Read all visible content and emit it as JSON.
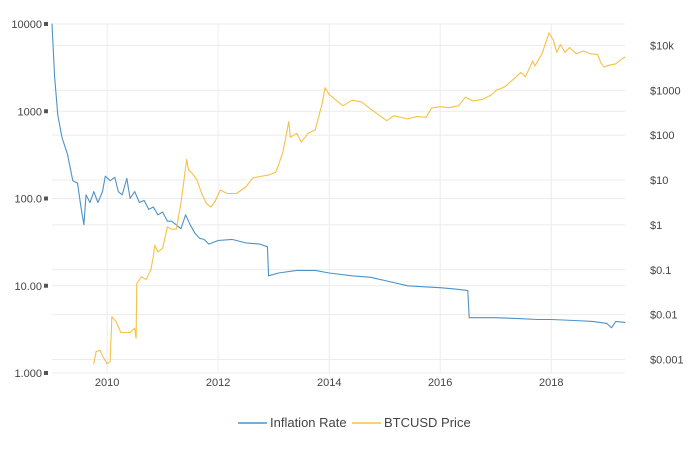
{
  "chart_data": {
    "type": "line",
    "x_axis": {
      "type": "time",
      "range": [
        "2009-01-03",
        "2019-05-01"
      ],
      "tick_labels": [
        "2010",
        "2012",
        "2014",
        "2016",
        "2018"
      ]
    },
    "y_left": {
      "scale": "log",
      "range": [
        1,
        10000
      ],
      "tick_labels": [
        "1.000",
        "10.00",
        "100.0",
        "1000",
        "10000"
      ]
    },
    "y_right": {
      "scale": "log",
      "range": [
        0.0005,
        30000
      ],
      "tick_labels": [
        "$0.001",
        "$0.01",
        "$0.1",
        "$1",
        "$10",
        "$100",
        "$1000",
        "$10k"
      ]
    },
    "grid": true,
    "legend_position": "bottom",
    "colors": {
      "inflation": "#4f92c6",
      "price": "#f5c147",
      "grid": "#ececec",
      "tick_mark": "#555555"
    },
    "series": [
      {
        "name": "Inflation Rate",
        "axis": "left",
        "points": [
          [
            "2009-01-03",
            10000
          ],
          [
            "2009-01-20",
            2500
          ],
          [
            "2009-02-10",
            900
          ],
          [
            "2009-03-10",
            500
          ],
          [
            "2009-04-15",
            320
          ],
          [
            "2009-05-20",
            160
          ],
          [
            "2009-06-20",
            150
          ],
          [
            "2009-07-15",
            75
          ],
          [
            "2009-08-01",
            50
          ],
          [
            "2009-08-15",
            110
          ],
          [
            "2009-09-10",
            90
          ],
          [
            "2009-10-05",
            120
          ],
          [
            "2009-11-01",
            90
          ],
          [
            "2009-12-01",
            120
          ],
          [
            "2009-12-20",
            180
          ],
          [
            "2010-01-20",
            160
          ],
          [
            "2010-02-20",
            175
          ],
          [
            "2010-03-15",
            120
          ],
          [
            "2010-04-10",
            110
          ],
          [
            "2010-05-10",
            170
          ],
          [
            "2010-06-01",
            100
          ],
          [
            "2010-07-01",
            120
          ],
          [
            "2010-08-01",
            90
          ],
          [
            "2010-09-01",
            95
          ],
          [
            "2010-10-01",
            75
          ],
          [
            "2010-11-01",
            80
          ],
          [
            "2010-12-01",
            65
          ],
          [
            "2011-01-01",
            70
          ],
          [
            "2011-02-01",
            55
          ],
          [
            "2011-03-01",
            55
          ],
          [
            "2011-04-01",
            50
          ],
          [
            "2011-05-01",
            45
          ],
          [
            "2011-06-01",
            65
          ],
          [
            "2011-07-01",
            50
          ],
          [
            "2011-08-01",
            40
          ],
          [
            "2011-09-01",
            35
          ],
          [
            "2011-10-01",
            34
          ],
          [
            "2011-11-01",
            30
          ],
          [
            "2012-01-01",
            33
          ],
          [
            "2012-04-01",
            34
          ],
          [
            "2012-07-01",
            31
          ],
          [
            "2012-10-01",
            30
          ],
          [
            "2012-11-20",
            28
          ],
          [
            "2012-11-28",
            13
          ],
          [
            "2013-02-01",
            14
          ],
          [
            "2013-06-01",
            15
          ],
          [
            "2013-10-01",
            15
          ],
          [
            "2014-01-01",
            14
          ],
          [
            "2014-06-01",
            13
          ],
          [
            "2014-10-01",
            12.5
          ],
          [
            "2015-01-01",
            11.5
          ],
          [
            "2015-06-01",
            10
          ],
          [
            "2015-10-01",
            9.7
          ],
          [
            "2016-01-01",
            9.5
          ],
          [
            "2016-04-01",
            9.2
          ],
          [
            "2016-07-01",
            8.8
          ],
          [
            "2016-07-10",
            4.3
          ],
          [
            "2016-10-01",
            4.3
          ],
          [
            "2017-01-01",
            4.3
          ],
          [
            "2017-06-01",
            4.2
          ],
          [
            "2017-10-01",
            4.1
          ],
          [
            "2018-01-01",
            4.1
          ],
          [
            "2018-06-01",
            4.0
          ],
          [
            "2018-10-01",
            3.9
          ],
          [
            "2019-01-01",
            3.7
          ],
          [
            "2019-02-01",
            3.3
          ],
          [
            "2019-03-01",
            3.9
          ],
          [
            "2019-05-01",
            3.8
          ]
        ]
      },
      {
        "name": "BTCUSD Price",
        "axis": "right",
        "points": [
          [
            "2009-10-05",
            0.0008
          ],
          [
            "2009-10-20",
            0.0015
          ],
          [
            "2009-11-15",
            0.0016
          ],
          [
            "2009-12-01",
            0.0012
          ],
          [
            "2010-01-01",
            0.0008
          ],
          [
            "2010-01-20",
            0.0009
          ],
          [
            "2010-02-01",
            0.009
          ],
          [
            "2010-03-01",
            0.007
          ],
          [
            "2010-04-01",
            0.004
          ],
          [
            "2010-05-01",
            0.004
          ],
          [
            "2010-06-01",
            0.004
          ],
          [
            "2010-07-01",
            0.005
          ],
          [
            "2010-07-10",
            0.003
          ],
          [
            "2010-07-15",
            0.05
          ],
          [
            "2010-08-15",
            0.07
          ],
          [
            "2010-09-15",
            0.06
          ],
          [
            "2010-10-15",
            0.1
          ],
          [
            "2010-11-01",
            0.2
          ],
          [
            "2010-11-10",
            0.35
          ],
          [
            "2010-12-01",
            0.25
          ],
          [
            "2011-01-01",
            0.3
          ],
          [
            "2011-02-01",
            0.9
          ],
          [
            "2011-03-01",
            0.8
          ],
          [
            "2011-04-01",
            0.8
          ],
          [
            "2011-05-01",
            3
          ],
          [
            "2011-06-08",
            29
          ],
          [
            "2011-06-20",
            17
          ],
          [
            "2011-07-15",
            14
          ],
          [
            "2011-08-15",
            10
          ],
          [
            "2011-09-15",
            5
          ],
          [
            "2011-10-15",
            3
          ],
          [
            "2011-11-15",
            2.5
          ],
          [
            "2011-12-15",
            3.5
          ],
          [
            "2012-01-15",
            6
          ],
          [
            "2012-03-01",
            5
          ],
          [
            "2012-05-01",
            5
          ],
          [
            "2012-07-01",
            7
          ],
          [
            "2012-08-15",
            11
          ],
          [
            "2012-10-01",
            12
          ],
          [
            "2012-12-01",
            13
          ],
          [
            "2013-01-15",
            15
          ],
          [
            "2013-03-01",
            40
          ],
          [
            "2013-04-10",
            200
          ],
          [
            "2013-04-20",
            90
          ],
          [
            "2013-06-01",
            110
          ],
          [
            "2013-07-01",
            70
          ],
          [
            "2013-08-15",
            110
          ],
          [
            "2013-10-01",
            130
          ],
          [
            "2013-11-15",
            500
          ],
          [
            "2013-12-04",
            1150
          ],
          [
            "2014-01-01",
            800
          ],
          [
            "2014-02-15",
            600
          ],
          [
            "2014-04-01",
            450
          ],
          [
            "2014-06-01",
            600
          ],
          [
            "2014-08-01",
            550
          ],
          [
            "2014-10-01",
            380
          ],
          [
            "2015-01-15",
            210
          ],
          [
            "2015-03-01",
            270
          ],
          [
            "2015-06-01",
            230
          ],
          [
            "2015-08-01",
            260
          ],
          [
            "2015-10-01",
            250
          ],
          [
            "2015-11-05",
            400
          ],
          [
            "2016-01-01",
            430
          ],
          [
            "2016-03-01",
            410
          ],
          [
            "2016-05-01",
            450
          ],
          [
            "2016-06-15",
            700
          ],
          [
            "2016-08-01",
            580
          ],
          [
            "2016-10-01",
            620
          ],
          [
            "2016-12-01",
            780
          ],
          [
            "2017-01-05",
            1000
          ],
          [
            "2017-03-01",
            1200
          ],
          [
            "2017-05-01",
            1800
          ],
          [
            "2017-06-15",
            2500
          ],
          [
            "2017-07-15",
            2000
          ],
          [
            "2017-09-01",
            4500
          ],
          [
            "2017-09-15",
            3500
          ],
          [
            "2017-11-01",
            6500
          ],
          [
            "2017-12-17",
            19000
          ],
          [
            "2018-01-15",
            13000
          ],
          [
            "2018-02-06",
            7000
          ],
          [
            "2018-03-01",
            10500
          ],
          [
            "2018-04-01",
            7000
          ],
          [
            "2018-05-01",
            9000
          ],
          [
            "2018-06-15",
            6500
          ],
          [
            "2018-08-01",
            7500
          ],
          [
            "2018-09-15",
            6500
          ],
          [
            "2018-11-01",
            6300
          ],
          [
            "2018-11-25",
            4000
          ],
          [
            "2018-12-15",
            3300
          ],
          [
            "2019-01-15",
            3600
          ],
          [
            "2019-03-01",
            3900
          ],
          [
            "2019-04-15",
            5100
          ],
          [
            "2019-05-01",
            5500
          ]
        ]
      }
    ]
  }
}
